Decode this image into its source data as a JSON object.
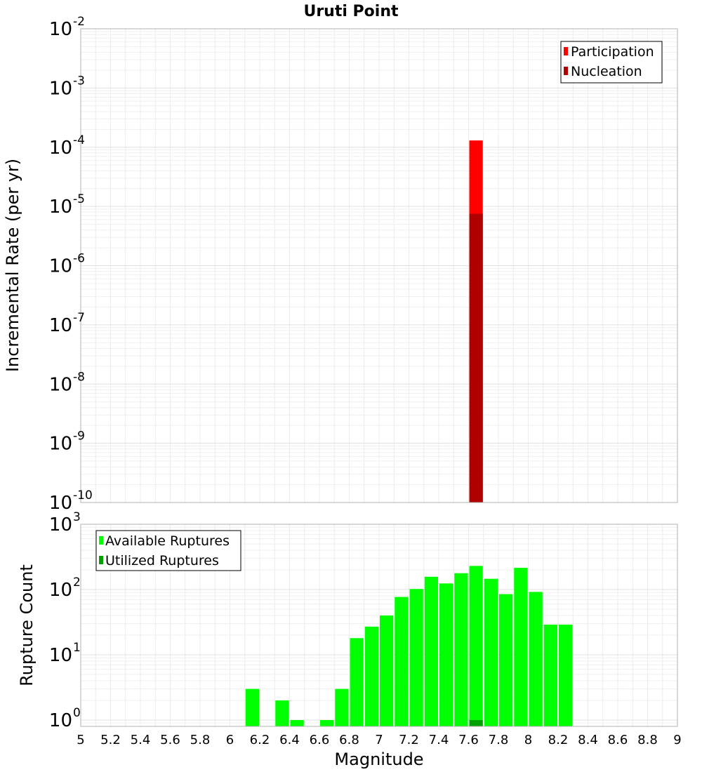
{
  "chart_data": [
    {
      "type": "bar",
      "panel": "top",
      "title": "Uruti Point",
      "ylabel": "Incremental Rate (per yr)",
      "yscale": "log",
      "ylim": [
        1e-10,
        0.01
      ],
      "xlim": [
        5,
        9
      ],
      "ytick_exponents": [
        -10,
        -9,
        -8,
        -7,
        -6,
        -5,
        -4,
        -3,
        -2
      ],
      "grid": true,
      "legend_position": "top-right",
      "series": [
        {
          "name": "Participation",
          "color": "#ff0000",
          "bars": [
            {
              "x": 7.65,
              "y": 0.00013
            }
          ]
        },
        {
          "name": "Nucleation",
          "color": "#b00000",
          "bars": [
            {
              "x": 7.65,
              "y": 7.5e-06
            }
          ]
        }
      ]
    },
    {
      "type": "bar",
      "panel": "bottom",
      "xlabel": "Magnitude",
      "ylabel": "Rupture Count",
      "yscale": "log",
      "ylim": [
        0.8,
        1000
      ],
      "xlim": [
        5,
        9
      ],
      "xticks": [
        "5",
        "5.2",
        "5.4",
        "5.6",
        "5.8",
        "6",
        "6.2",
        "6.4",
        "6.6",
        "6.8",
        "7",
        "7.2",
        "7.4",
        "7.6",
        "7.8",
        "8",
        "8.2",
        "8.4",
        "8.6",
        "8.8",
        "9"
      ],
      "ytick_exponents": [
        0,
        1,
        2,
        3
      ],
      "grid": true,
      "legend_position": "top-left",
      "series": [
        {
          "name": "Available Ruptures",
          "color": "#00ff00",
          "bars": [
            {
              "x": 6.15,
              "y": 3
            },
            {
              "x": 6.35,
              "y": 2
            },
            {
              "x": 6.45,
              "y": 1
            },
            {
              "x": 6.65,
              "y": 1
            },
            {
              "x": 6.75,
              "y": 3
            },
            {
              "x": 6.85,
              "y": 18
            },
            {
              "x": 6.95,
              "y": 27
            },
            {
              "x": 7.05,
              "y": 40
            },
            {
              "x": 7.15,
              "y": 77
            },
            {
              "x": 7.25,
              "y": 102
            },
            {
              "x": 7.35,
              "y": 157
            },
            {
              "x": 7.45,
              "y": 124
            },
            {
              "x": 7.55,
              "y": 178
            },
            {
              "x": 7.65,
              "y": 230
            },
            {
              "x": 7.75,
              "y": 146
            },
            {
              "x": 7.85,
              "y": 85
            },
            {
              "x": 7.95,
              "y": 215
            },
            {
              "x": 8.05,
              "y": 92
            },
            {
              "x": 8.15,
              "y": 29
            },
            {
              "x": 8.25,
              "y": 29
            }
          ]
        },
        {
          "name": "Utilized Ruptures",
          "color": "#00a000",
          "bars": [
            {
              "x": 7.65,
              "y": 1
            }
          ]
        }
      ]
    }
  ]
}
